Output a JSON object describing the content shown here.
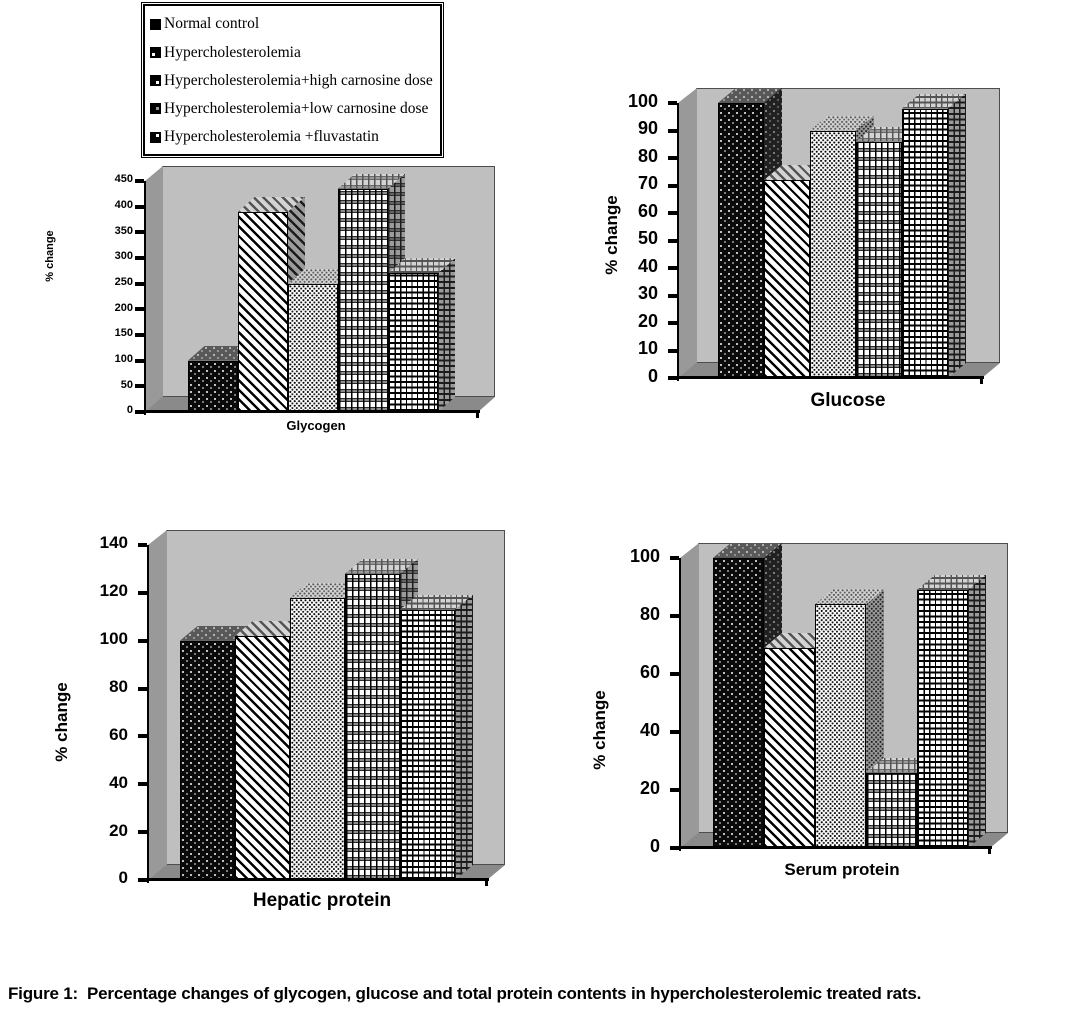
{
  "figure": {
    "caption": "Figure 1:  Percentage changes of glycogen, glucose and total protein contents in hypercholesterolemic treated rats."
  },
  "legend": {
    "items": [
      {
        "label": "Normal control",
        "pattern": "solid-black-with-white-dots"
      },
      {
        "label": "Hypercholesterolemia",
        "pattern": "diagonal-stripes"
      },
      {
        "label": "Hypercholesterolemia+high carnosine dose",
        "pattern": "dense-small-dots"
      },
      {
        "label": "Hypercholesterolemia+low carnosine dose",
        "pattern": "plaid-grid"
      },
      {
        "label": "Hypercholesterolemia +fluvastatin",
        "pattern": "dashed-grid"
      }
    ]
  },
  "chart_data": [
    {
      "type": "bar",
      "title": "",
      "xlabel": "Glycogen",
      "ylabel": "% change",
      "ylim": [
        0,
        450
      ],
      "ytick_step": 50,
      "grid": false,
      "legend_position": "top-left-shared",
      "categories": [
        "Normal control",
        "Hypercholesterolemia",
        "Hypercholesterolemia+high carnosine dose",
        "Hypercholesterolemia+low carnosine dose",
        "Hypercholesterolemia +fluvastatin"
      ],
      "values": [
        100,
        390,
        250,
        435,
        270
      ]
    },
    {
      "type": "bar",
      "title": "",
      "xlabel": "Glucose",
      "ylabel": "% change",
      "ylim": [
        0,
        100
      ],
      "ytick_step": 10,
      "grid": false,
      "legend_position": "top-left-shared",
      "categories": [
        "Normal control",
        "Hypercholesterolemia",
        "Hypercholesterolemia+high carnosine dose",
        "Hypercholesterolemia+low carnosine dose",
        "Hypercholesterolemia +fluvastatin"
      ],
      "values": [
        100,
        72,
        90,
        86,
        98
      ]
    },
    {
      "type": "bar",
      "title": "",
      "xlabel": "Hepatic protein",
      "ylabel": "% change",
      "ylim": [
        0,
        140
      ],
      "ytick_step": 20,
      "grid": false,
      "legend_position": "top-left-shared",
      "categories": [
        "Normal control",
        "Hypercholesterolemia",
        "Hypercholesterolemia+high carnosine dose",
        "Hypercholesterolemia+low carnosine dose",
        "Hypercholesterolemia +fluvastatin"
      ],
      "values": [
        100,
        102,
        118,
        128,
        113
      ]
    },
    {
      "type": "bar",
      "title": "",
      "xlabel": "Serum protein",
      "ylabel": "% change",
      "ylim": [
        0,
        100
      ],
      "ytick_step": 20,
      "grid": false,
      "legend_position": "top-left-shared",
      "categories": [
        "Normal control",
        "Hypercholesterolemia",
        "Hypercholesterolemia+high carnosine dose",
        "Hypercholesterolemia+low carnosine dose",
        "Hypercholesterolemia +fluvastatin"
      ],
      "values": [
        100,
        69,
        84,
        26,
        89
      ]
    }
  ],
  "colors": {
    "background": "#ffffff",
    "wall_back": "#bfbfbf",
    "wall_side": "#999999",
    "floor": "#8a8a8a",
    "axis": "#000000",
    "bar_outline": "#000000"
  }
}
